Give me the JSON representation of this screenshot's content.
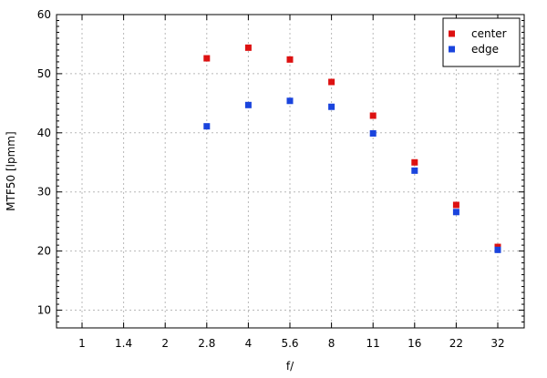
{
  "chart_data": {
    "type": "scatter",
    "title": "",
    "xlabel": "f/",
    "ylabel": "MTF50 [lpmm]",
    "x_categories": [
      "1",
      "1.4",
      "2",
      "2.8",
      "4",
      "5.6",
      "8",
      "11",
      "16",
      "22",
      "32"
    ],
    "ylim": [
      7,
      60
    ],
    "y_ticks": [
      10,
      20,
      30,
      40,
      50,
      60
    ],
    "grid": true,
    "legend_position": "top-right",
    "series": [
      {
        "name": "center",
        "color": "#dd1111",
        "x": [
          "2.8",
          "4",
          "5.6",
          "8",
          "11",
          "16",
          "22",
          "32"
        ],
        "y": [
          52.6,
          54.4,
          52.4,
          48.6,
          42.9,
          35.0,
          27.8,
          20.7
        ]
      },
      {
        "name": "edge",
        "color": "#1a44dd",
        "x": [
          "2.8",
          "4",
          "5.6",
          "8",
          "11",
          "16",
          "22",
          "32"
        ],
        "y": [
          41.1,
          44.7,
          45.4,
          44.4,
          39.9,
          33.6,
          26.6,
          20.2
        ]
      }
    ]
  }
}
